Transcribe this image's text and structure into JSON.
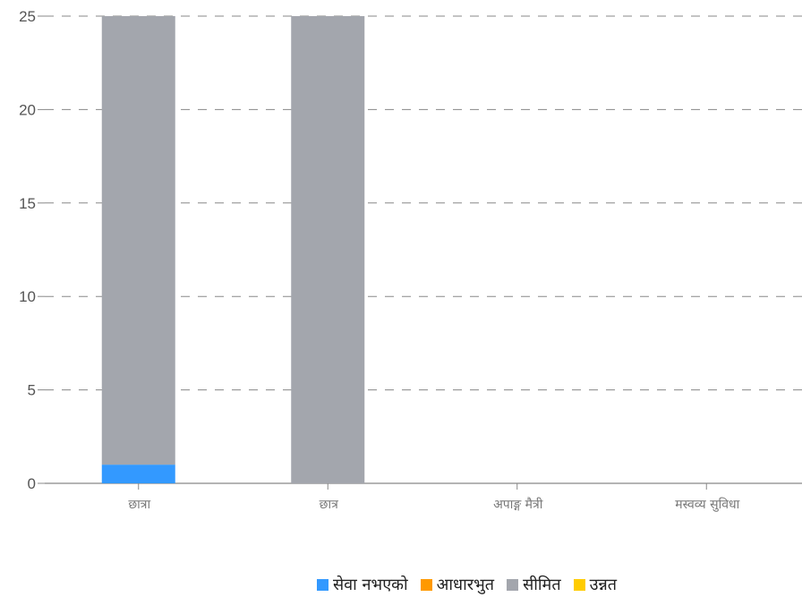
{
  "chart_data": {
    "type": "bar",
    "stacked": true,
    "categories": [
      "छात्रा",
      "छात्र",
      "अपाङ्ग मैत्री",
      "मस्वव्य सुविधा"
    ],
    "series": [
      {
        "name": "सेवा नभएको",
        "color": "#3399ff",
        "values": [
          1,
          0,
          0,
          0
        ]
      },
      {
        "name": "आधारभुत",
        "color": "#ff9900",
        "values": [
          0,
          0,
          0,
          0
        ]
      },
      {
        "name": "सीमित",
        "color": "#a3a6ad",
        "values": [
          24,
          25,
          0,
          0
        ]
      },
      {
        "name": "उन्नत",
        "color": "#ffcc00",
        "values": [
          0,
          0,
          0,
          0
        ]
      }
    ],
    "ylim": [
      0,
      25
    ],
    "yticks": [
      0,
      5,
      10,
      15,
      20,
      25
    ],
    "grid": true,
    "legend_position": "bottom"
  }
}
